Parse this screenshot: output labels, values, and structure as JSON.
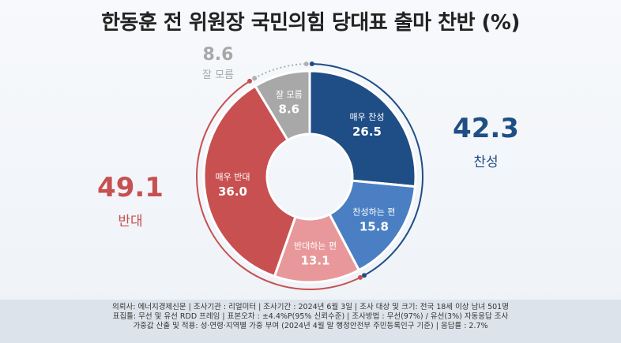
{
  "title": "한동훈 전 위원장 국민의힘 당대표 출마 찬반 (%)",
  "summary": {
    "against": {
      "value": "49.1",
      "label": "반대"
    },
    "support": {
      "value": "42.3",
      "label": "찬성"
    },
    "unsure": {
      "value": "8.6",
      "label": "잘 모름"
    }
  },
  "chart_data": {
    "type": "pie",
    "title": "한동훈 전 위원장 국민의힘 당대표 출마 찬반 (%)",
    "categories": [
      "매우 찬성",
      "찬성하는 편",
      "반대하는 편",
      "매우 반대",
      "잘 모름"
    ],
    "values": [
      26.5,
      15.8,
      13.1,
      36.0,
      8.6
    ],
    "colors": [
      "#1f4e86",
      "#4a7fc4",
      "#e8989a",
      "#c85050",
      "#a8a8a8"
    ],
    "label_colors": [
      "#ffffff",
      "#ffffff",
      "#ffffff",
      "#ffffff",
      "#ffffff"
    ],
    "donut": true
  },
  "footer": {
    "line1": "의뢰사: 에너지경제신문 | 조사기관 : 리얼미터 | 조사기간 : 2024년 6월 3일 | 조사 대상 및 크기: 전국 18세 이상 남녀 501명",
    "line2": "표집틀: 무선 및 유선 RDD 프레임 | 표본오차 : ±4.4%P(95% 신뢰수준) | 조사방법 : 무선(97%) / 유선(3%) 자동응답 조사",
    "line3": "가중값 산출 및 적용: 성·연령·지역별 가중 부여 (2024년 4월 말 행정안전부 주민등록인구 기준) | 응답률 : 2.7%"
  },
  "colors": {
    "support_arc": "#1f4e86",
    "against_arc": "#c85050",
    "unsure_arc": "#b0b0b0"
  }
}
